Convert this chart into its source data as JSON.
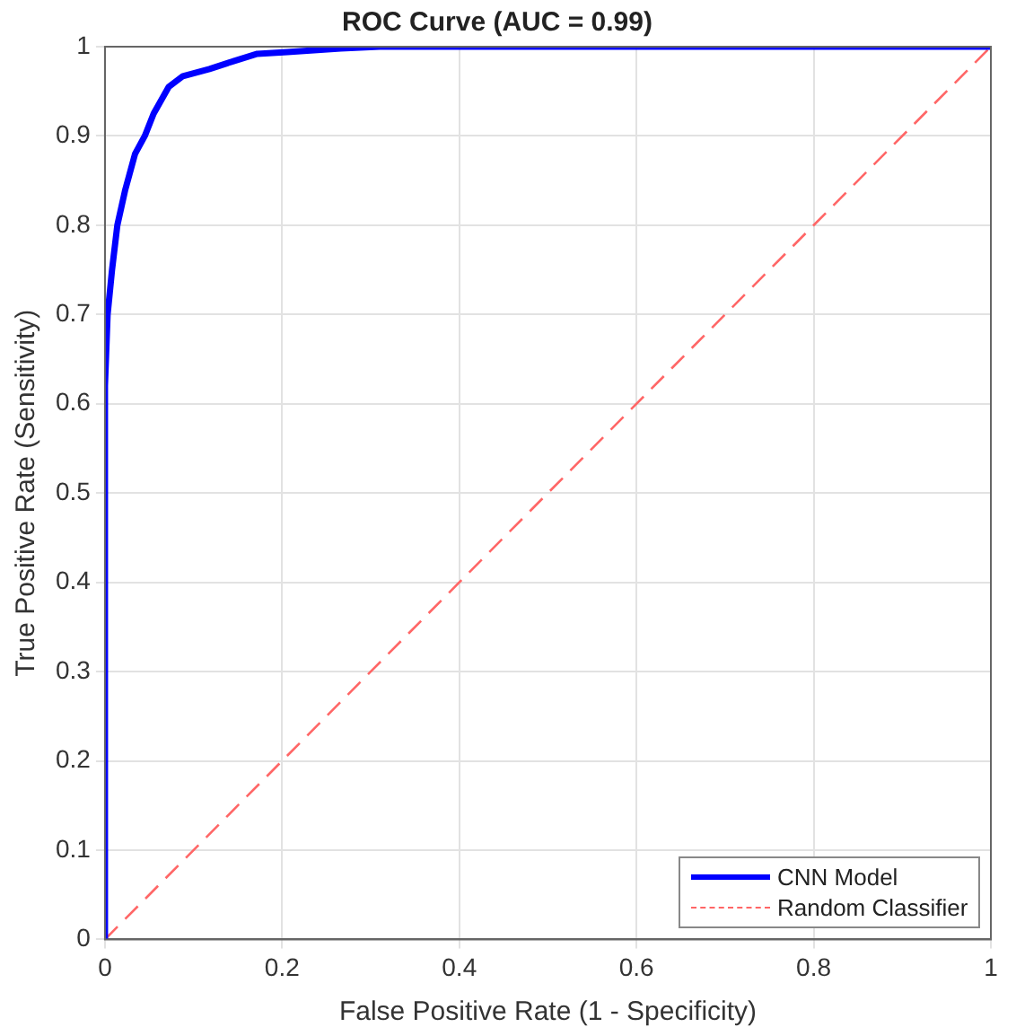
{
  "chart_data": {
    "type": "line",
    "title": "ROC Curve (AUC = 0.99)",
    "xlabel": "False Positive Rate (1 - Specificity)",
    "ylabel": "True Positive Rate (Sensitivity)",
    "xlim": [
      0,
      1
    ],
    "ylim": [
      0,
      1
    ],
    "xticks": [
      0,
      0.2,
      0.4,
      0.6,
      0.8,
      1
    ],
    "yticks": [
      0,
      0.1,
      0.2,
      0.3,
      0.4,
      0.5,
      0.6,
      0.7,
      0.8,
      0.9,
      1
    ],
    "grid": true,
    "legend": "bottom right",
    "marker": "none",
    "series": [
      {
        "name": "CNN Model",
        "color": "#0000ff",
        "line_style": "solid",
        "x": [
          0,
          0,
          0.003,
          0.008,
          0.014,
          0.023,
          0.034,
          0.045,
          0.055,
          0.072,
          0.088,
          0.118,
          0.146,
          0.172,
          0.206,
          0.266,
          0.31,
          1
        ],
        "values": [
          0,
          0.62,
          0.7,
          0.75,
          0.8,
          0.84,
          0.88,
          0.9,
          0.925,
          0.955,
          0.967,
          0.975,
          0.984,
          0.992,
          0.994,
          0.998,
          1,
          1
        ]
      },
      {
        "name": "Random Classifier",
        "color": "#ff6666",
        "line_style": "dashed",
        "x": [
          0,
          1
        ],
        "values": [
          0,
          1
        ]
      }
    ]
  }
}
